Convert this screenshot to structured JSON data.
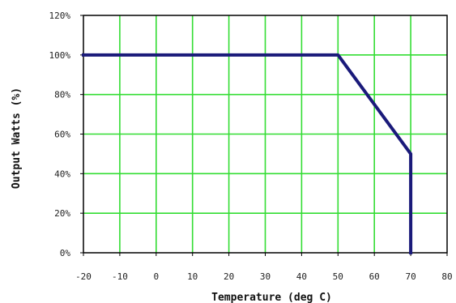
{
  "chart_data": {
    "type": "line",
    "xlabel": "Temperature (deg C)",
    "ylabel": "Output Watts (%)",
    "xlim": [
      -20,
      80
    ],
    "ylim": [
      0,
      120
    ],
    "x_ticks": [
      -20,
      -10,
      0,
      10,
      20,
      30,
      40,
      50,
      60,
      70,
      80
    ],
    "x_tick_labels": [
      "-20",
      "-10",
      "0",
      "10",
      "20",
      "30",
      "40",
      "50",
      "60",
      "70",
      "80"
    ],
    "y_ticks": [
      0,
      20,
      40,
      60,
      80,
      100,
      120
    ],
    "y_tick_labels": [
      "0%",
      "20%",
      "40%",
      "60%",
      "80%",
      "100%",
      "120%"
    ],
    "grid": true,
    "grid_color": "#33dd33",
    "line_color": "#1a1a7a",
    "series": [
      {
        "x": [
          -20,
          50,
          70,
          70
        ],
        "y": [
          100,
          100,
          50,
          0
        ]
      }
    ]
  }
}
